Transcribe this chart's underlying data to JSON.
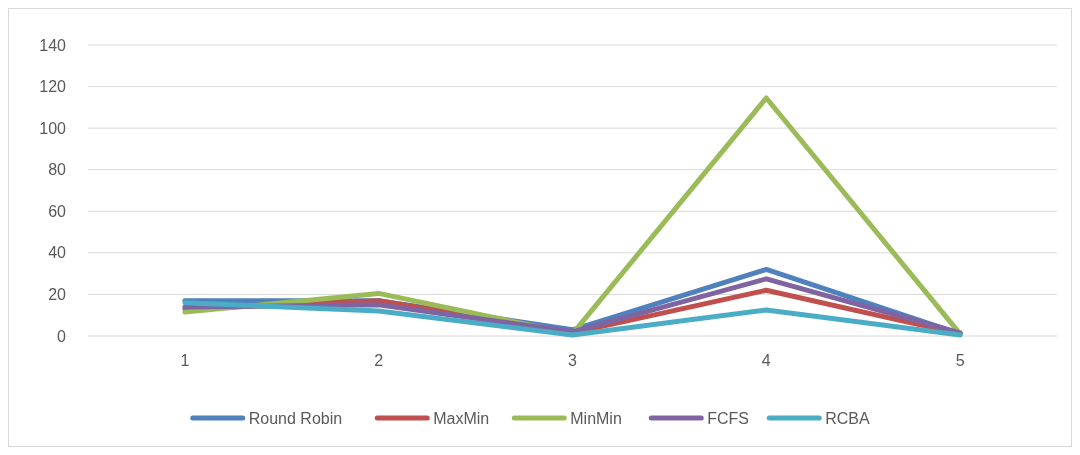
{
  "chart_data": {
    "type": "line",
    "categories": [
      "1",
      "2",
      "3",
      "4",
      "5"
    ],
    "series": [
      {
        "name": "Round Robin",
        "color": "#4f81bd",
        "values": [
          17,
          17,
          3,
          32,
          1
        ]
      },
      {
        "name": "MaxMin",
        "color": "#c0504d",
        "values": [
          13,
          17,
          1.5,
          22,
          1
        ]
      },
      {
        "name": "MinMin",
        "color": "#9bbb59",
        "values": [
          11.5,
          20.5,
          1,
          114.5,
          1
        ]
      },
      {
        "name": "FCFS",
        "color": "#8064a2",
        "values": [
          14,
          15,
          2,
          27.5,
          1.5
        ]
      },
      {
        "name": "RCBA",
        "color": "#4bacc6",
        "values": [
          16,
          12,
          0.5,
          12.5,
          0.5
        ]
      }
    ],
    "ylim": [
      0,
      140
    ],
    "yticks": [
      0,
      20,
      40,
      60,
      80,
      100,
      120,
      140
    ],
    "grid": "y",
    "legend": "bottom",
    "marker": "none",
    "line_style": "solid"
  }
}
